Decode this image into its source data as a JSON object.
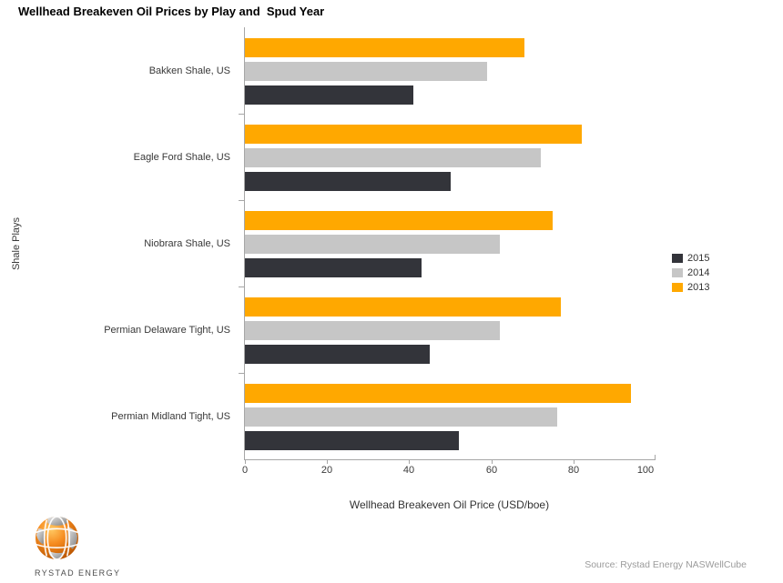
{
  "header": {
    "title": "Wellhead Breakeven Oil Prices by Play and  Spud Year"
  },
  "chart_data": {
    "type": "bar",
    "orientation": "horizontal",
    "title": "Wellhead Breakeven Oil Prices by Play and Spud Year",
    "categories": [
      "Bakken Shale, US",
      "Eagle Ford Shale, US",
      "Niobrara Shale, US",
      "Permian Delaware Tight, US",
      "Permian Midland Tight, US"
    ],
    "series": [
      {
        "name": "2015",
        "color": "#33343a",
        "values": [
          41,
          50,
          43,
          45,
          52
        ]
      },
      {
        "name": "2014",
        "color": "#c6c6c6",
        "values": [
          59,
          72,
          62,
          62,
          76
        ]
      },
      {
        "name": "2013",
        "color": "#ffa800",
        "values": [
          68,
          82,
          75,
          77,
          94
        ]
      }
    ],
    "bar_order_top_to_bottom": [
      "2013",
      "2014",
      "2015"
    ],
    "xlabel": "Wellhead Breakeven Oil Price (USD/boe)",
    "ylabel": "Shale Plays",
    "xlim": [
      0,
      100
    ],
    "xticks": [
      0,
      20,
      40,
      60,
      80,
      100
    ],
    "grid": false,
    "legend_position": "right",
    "axis_color": "#a6a6a6"
  },
  "footer": {
    "source": "Source: Rystad Energy NASWellCube",
    "logo_text": "RYSTAD ENERGY"
  }
}
